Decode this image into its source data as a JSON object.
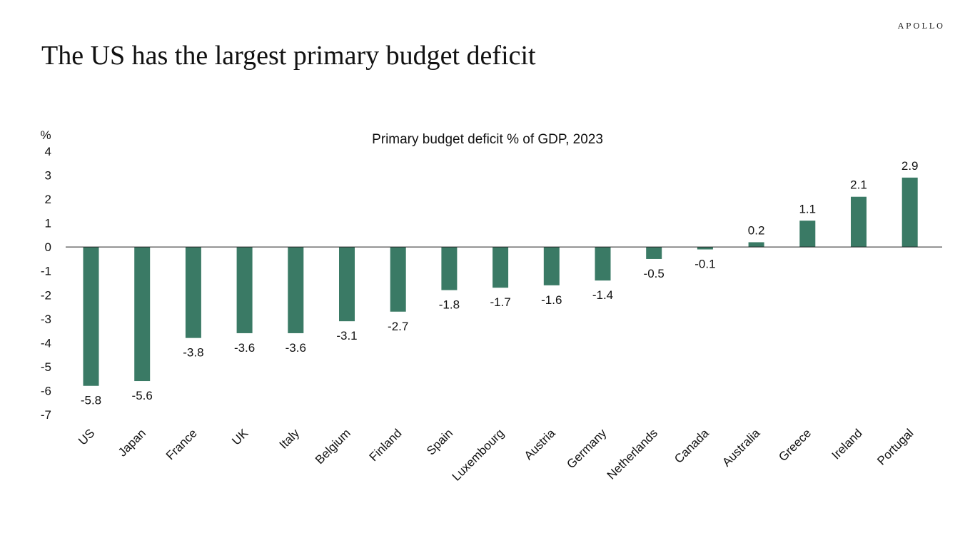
{
  "brand": "APOLLO",
  "title": "The US has the largest primary budget deficit",
  "chart_data": {
    "type": "bar",
    "title": "Primary budget deficit % of GDP, 2023",
    "ylabel": "%",
    "ylim": [
      -7,
      4
    ],
    "yticks": [
      4,
      3,
      2,
      1,
      0,
      -1,
      -2,
      -3,
      -4,
      -5,
      -6,
      -7
    ],
    "categories": [
      "US",
      "Japan",
      "France",
      "UK",
      "Italy",
      "Belgium",
      "Finland",
      "Spain",
      "Luxembourg",
      "Austria",
      "Germany",
      "Netherlands",
      "Canada",
      "Australia",
      "Greece",
      "Ireland",
      "Portugal"
    ],
    "values": [
      -5.8,
      -5.6,
      -3.8,
      -3.6,
      -3.6,
      -3.1,
      -2.7,
      -1.8,
      -1.7,
      -1.6,
      -1.4,
      -0.5,
      -0.1,
      0.2,
      1.1,
      2.1,
      2.9
    ],
    "bar_color": "#3a7a65",
    "grid": false,
    "legend": "none"
  }
}
